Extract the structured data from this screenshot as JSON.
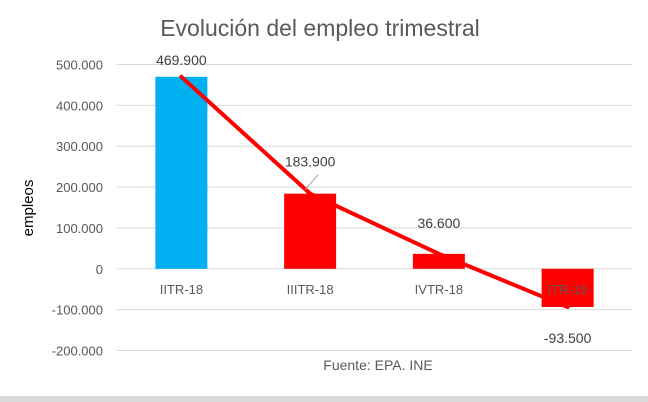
{
  "chart_data": {
    "type": "bar",
    "title": "Evolución del empleo trimestral",
    "ylabel": "empleos",
    "xlabel": "Fuente: EPA. INE",
    "categories": [
      "IITR-18",
      "IIITR-18",
      "IVTR-18",
      "ITR-19"
    ],
    "values": [
      469900,
      183900,
      36600,
      -93500
    ],
    "data_labels": [
      "469.900",
      "183.900",
      "36.600",
      "-93.500"
    ],
    "bar_colors": [
      "#00b0f0",
      "#ff0000",
      "#ff0000",
      "#ff0000"
    ],
    "line_color": "#ff0000",
    "ylim": [
      -200000,
      500000
    ],
    "yticks": [
      500000,
      400000,
      300000,
      200000,
      100000,
      0,
      -100000,
      -200000
    ],
    "ytick_labels": [
      "500.000",
      "400.000",
      "300.000",
      "200.000",
      "100.000",
      "0",
      "-100.000",
      "-200.000"
    ],
    "grid": true,
    "legend": "none"
  }
}
